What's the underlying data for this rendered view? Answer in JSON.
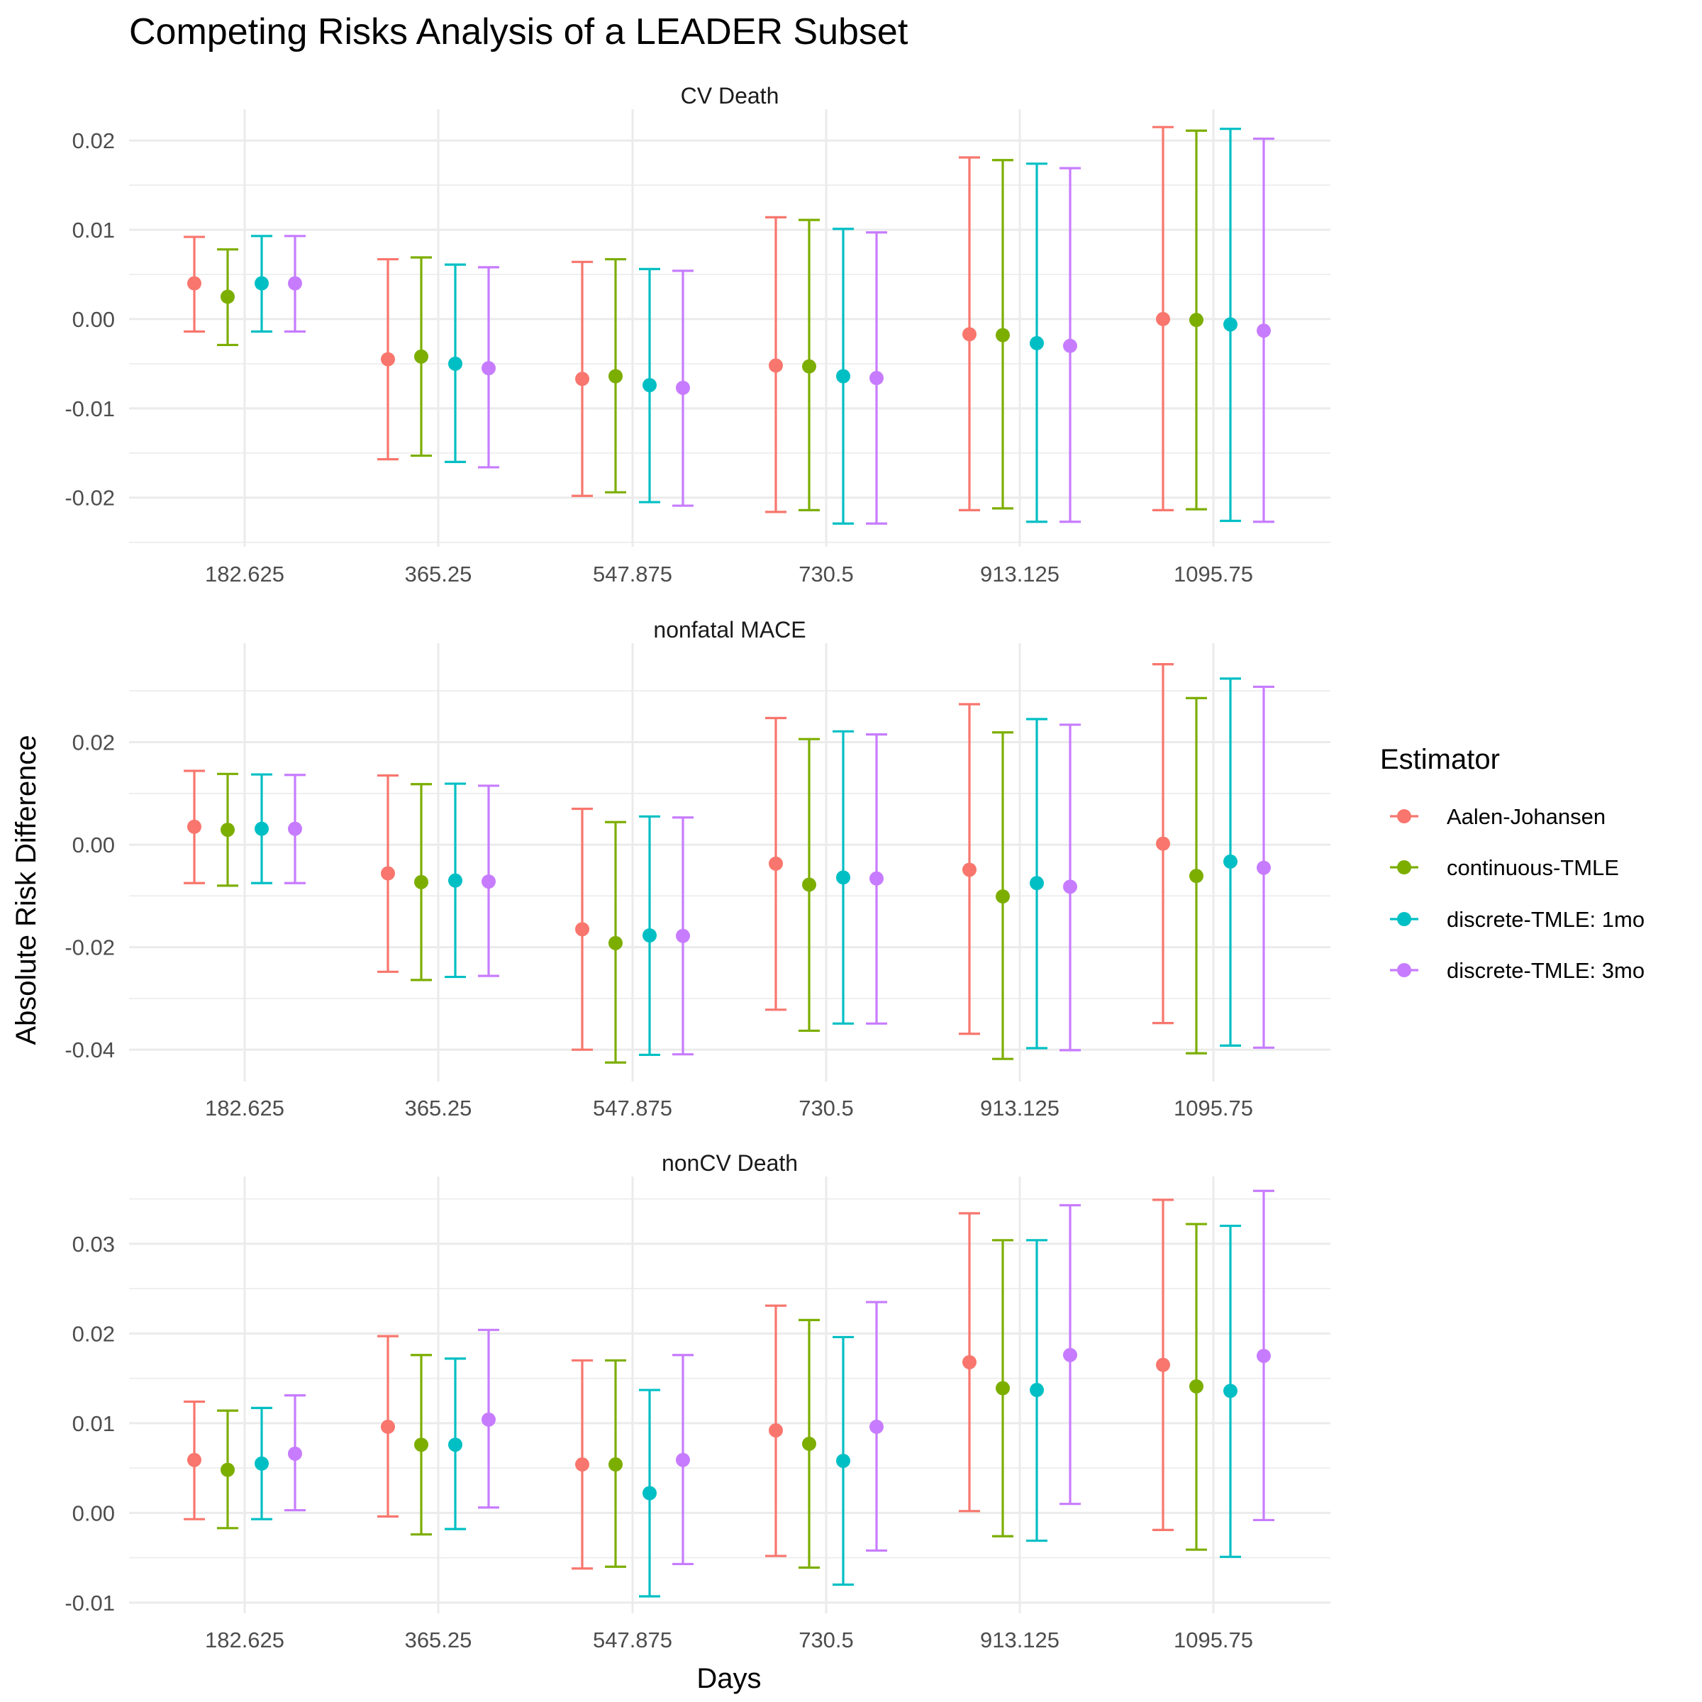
{
  "chart_data": {
    "type": "errorbar",
    "title": "Competing Risks Analysis of a LEADER Subset",
    "xlabel": "Days",
    "ylabel": "Absolute Risk Difference",
    "legend_title": "Estimator",
    "legend_position": "right",
    "grid": true,
    "categories": [
      "182.625",
      "365.25",
      "547.875",
      "730.5",
      "913.125",
      "1095.75"
    ],
    "series": [
      {
        "name": "Aalen-Johansen",
        "color": "#F8766D"
      },
      {
        "name": "continuous-TMLE",
        "color": "#7CAE00"
      },
      {
        "name": "discrete-TMLE: 1mo",
        "color": "#00BFC4"
      },
      {
        "name": "discrete-TMLE: 3mo",
        "color": "#C77CFF"
      }
    ],
    "panels": [
      {
        "title": "CV Death",
        "ylim": [
          -0.0255,
          0.0235
        ],
        "yticks": [
          0.02,
          0.01,
          0.0,
          -0.01,
          -0.02
        ],
        "ytick_labels": [
          "0.02",
          "0.01",
          "0.00",
          "-0.01",
          "-0.02"
        ],
        "estimates": [
          [
            0.004,
            -0.0045,
            -0.0067,
            -0.0052,
            -0.0017,
            0.0
          ],
          [
            0.0025,
            -0.0042,
            -0.0064,
            -0.0053,
            -0.0018,
            -0.0001
          ],
          [
            0.004,
            -0.005,
            -0.0074,
            -0.0064,
            -0.0027,
            -0.0006
          ],
          [
            0.004,
            -0.0055,
            -0.0077,
            -0.0066,
            -0.003,
            -0.0013
          ]
        ],
        "lower": [
          [
            -0.0014,
            -0.0157,
            -0.0198,
            -0.0216,
            -0.0214,
            -0.0214
          ],
          [
            -0.0029,
            -0.0153,
            -0.0194,
            -0.0214,
            -0.0212,
            -0.0213
          ],
          [
            -0.0014,
            -0.016,
            -0.0205,
            -0.0229,
            -0.0227,
            -0.0226
          ],
          [
            -0.0014,
            -0.0166,
            -0.0209,
            -0.0229,
            -0.0227,
            -0.0227
          ]
        ],
        "upper": [
          [
            0.0092,
            0.0067,
            0.0064,
            0.0114,
            0.0181,
            0.0215
          ],
          [
            0.0078,
            0.0069,
            0.0067,
            0.0111,
            0.0178,
            0.0211
          ],
          [
            0.0093,
            0.0061,
            0.0056,
            0.0101,
            0.0174,
            0.0213
          ],
          [
            0.0093,
            0.0058,
            0.0054,
            0.0097,
            0.0169,
            0.0202
          ]
        ]
      },
      {
        "title": "nonfatal MACE",
        "ylim": [
          -0.0462,
          0.0393
        ],
        "yticks": [
          0.02,
          0.0,
          -0.02,
          -0.04
        ],
        "ytick_labels": [
          "0.02",
          "0.00",
          "-0.02",
          "-0.04"
        ],
        "estimates": [
          [
            0.0035,
            -0.0056,
            -0.0165,
            -0.0037,
            -0.0049,
            0.0002
          ],
          [
            0.0029,
            -0.0073,
            -0.0192,
            -0.0078,
            -0.0101,
            -0.0061
          ],
          [
            0.0031,
            -0.007,
            -0.0177,
            -0.0064,
            -0.0075,
            -0.0033
          ],
          [
            0.0031,
            -0.0072,
            -0.0178,
            -0.0066,
            -0.0082,
            -0.0045
          ]
        ],
        "lower": [
          [
            -0.0075,
            -0.0248,
            -0.04,
            -0.0322,
            -0.0369,
            -0.0348
          ],
          [
            -0.008,
            -0.0264,
            -0.0425,
            -0.0363,
            -0.0418,
            -0.0407
          ],
          [
            -0.0075,
            -0.0258,
            -0.041,
            -0.0349,
            -0.0397,
            -0.0392
          ],
          [
            -0.0075,
            -0.0256,
            -0.0409,
            -0.0349,
            -0.0401,
            -0.0396
          ]
        ],
        "upper": [
          [
            0.0144,
            0.0135,
            0.007,
            0.0247,
            0.0274,
            0.0352
          ],
          [
            0.0138,
            0.0118,
            0.0044,
            0.0206,
            0.0219,
            0.0286
          ],
          [
            0.0137,
            0.0119,
            0.0055,
            0.0221,
            0.0245,
            0.0324
          ],
          [
            0.0136,
            0.0115,
            0.0053,
            0.0215,
            0.0234,
            0.0308
          ]
        ]
      },
      {
        "title": "nonCV Death",
        "ylim": [
          -0.0112,
          0.0375
        ],
        "yticks": [
          0.03,
          0.02,
          0.01,
          0.0,
          -0.01
        ],
        "ytick_labels": [
          "0.03",
          "0.02",
          "0.01",
          "0.00",
          "-0.01"
        ],
        "estimates": [
          [
            0.0059,
            0.0096,
            0.0054,
            0.0092,
            0.0168,
            0.0165
          ],
          [
            0.0048,
            0.0076,
            0.0054,
            0.0077,
            0.0139,
            0.0141
          ],
          [
            0.0055,
            0.0076,
            0.0022,
            0.0058,
            0.0137,
            0.0136
          ],
          [
            0.0066,
            0.0104,
            0.0059,
            0.0096,
            0.0176,
            0.0175
          ]
        ],
        "lower": [
          [
            -0.0007,
            -0.0004,
            -0.0062,
            -0.0048,
            0.0002,
            -0.0019
          ],
          [
            -0.0017,
            -0.0024,
            -0.006,
            -0.0061,
            -0.0026,
            -0.0041
          ],
          [
            -0.0007,
            -0.0018,
            -0.0093,
            -0.008,
            -0.0031,
            -0.0049
          ],
          [
            0.0003,
            0.0006,
            -0.0057,
            -0.0042,
            0.001,
            -0.0008
          ]
        ],
        "upper": [
          [
            0.0124,
            0.0197,
            0.017,
            0.0231,
            0.0334,
            0.0349
          ],
          [
            0.0114,
            0.0176,
            0.017,
            0.0215,
            0.0304,
            0.0322
          ],
          [
            0.0117,
            0.0172,
            0.0137,
            0.0196,
            0.0304,
            0.032
          ],
          [
            0.0131,
            0.0204,
            0.0176,
            0.0235,
            0.0343,
            0.0359
          ]
        ]
      }
    ]
  }
}
